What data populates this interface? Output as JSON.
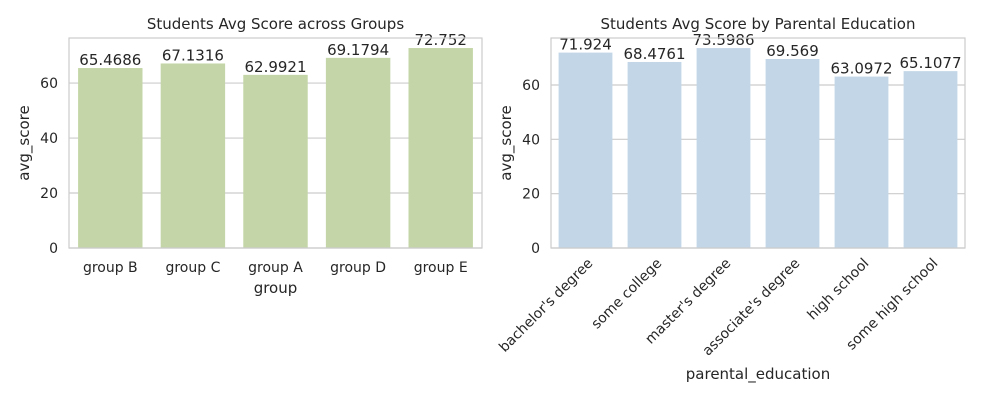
{
  "chart_data": [
    {
      "type": "bar",
      "title": "Students Avg Score across Groups",
      "xlabel": "group",
      "ylabel": "avg_score",
      "categories": [
        "group B",
        "group C",
        "group A",
        "group D",
        "group E"
      ],
      "values": [
        65.4686,
        67.1316,
        62.9921,
        69.1794,
        72.752
      ],
      "value_labels": [
        "65.4686",
        "67.1316",
        "62.9921",
        "69.1794",
        "72.752"
      ],
      "yticks": [
        0,
        20,
        40,
        60
      ],
      "ylim": [
        0,
        76.4
      ],
      "bar_color": "#c4d6a7",
      "tick_rotation": 0,
      "grid": "horizontal"
    },
    {
      "type": "bar",
      "title": "Students Avg Score by Parental Education",
      "xlabel": "parental_education",
      "ylabel": "avg_score",
      "categories": [
        "bachelor's degree",
        "some college",
        "master's degree",
        "associate's degree",
        "high school",
        "some high school"
      ],
      "values": [
        71.924,
        68.4761,
        73.5986,
        69.569,
        63.0972,
        65.1077
      ],
      "value_labels": [
        "71.924",
        "68.4761",
        "73.5986",
        "69.569",
        "63.0972",
        "65.1077"
      ],
      "yticks": [
        0,
        20,
        40,
        60
      ],
      "ylim": [
        0,
        77.3
      ],
      "bar_color": "#c3d6e8",
      "tick_rotation": -45,
      "grid": "horizontal"
    }
  ]
}
